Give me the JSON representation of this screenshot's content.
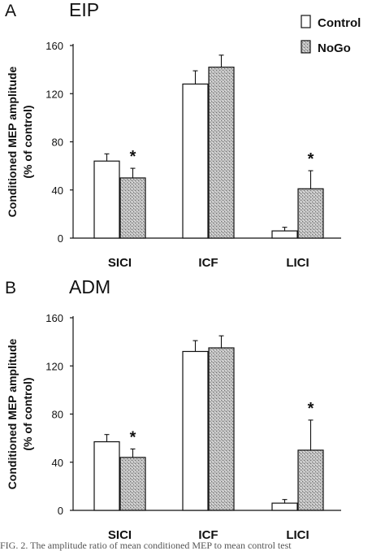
{
  "legend": {
    "control": "Control",
    "nogo": "NoGo",
    "placement": "top-right"
  },
  "caption_fragment": "FIG. 2.   The amplitude ratio of mean conditioned MEP to mean control test",
  "colors": {
    "control_fill": "#ffffff",
    "nogo_fill": "#bdbdbd",
    "axis": "#111111"
  },
  "chart_data": [
    {
      "type": "bar",
      "panel_letter": "A",
      "title": "EIP",
      "ylabel": "Conditioned MEP amplitude\n(% of control)",
      "xlabel": "",
      "categories": [
        "SICI",
        "ICF",
        "LICI"
      ],
      "ylim": [
        0,
        160
      ],
      "yticks": [
        0,
        40,
        80,
        120,
        160
      ],
      "series": [
        {
          "name": "Control",
          "values": [
            64,
            128,
            6
          ],
          "errors": [
            6,
            11,
            3
          ]
        },
        {
          "name": "NoGo",
          "values": [
            50,
            142,
            41
          ],
          "errors": [
            8,
            10,
            15
          ]
        }
      ],
      "significance": [
        "*",
        "",
        "*"
      ],
      "grid": false
    },
    {
      "type": "bar",
      "panel_letter": "B",
      "title": "ADM",
      "ylabel": "Conditioned MEP amplitude\n(% of control)",
      "xlabel": "",
      "categories": [
        "SICI",
        "ICF",
        "LICI"
      ],
      "ylim": [
        0,
        160
      ],
      "yticks": [
        0,
        40,
        80,
        120,
        160
      ],
      "series": [
        {
          "name": "Control",
          "values": [
            57,
            132,
            6
          ],
          "errors": [
            6,
            9,
            3
          ]
        },
        {
          "name": "NoGo",
          "values": [
            44,
            135,
            50
          ],
          "errors": [
            7,
            10,
            25
          ]
        }
      ],
      "significance": [
        "*",
        "",
        "*"
      ],
      "grid": false
    }
  ]
}
